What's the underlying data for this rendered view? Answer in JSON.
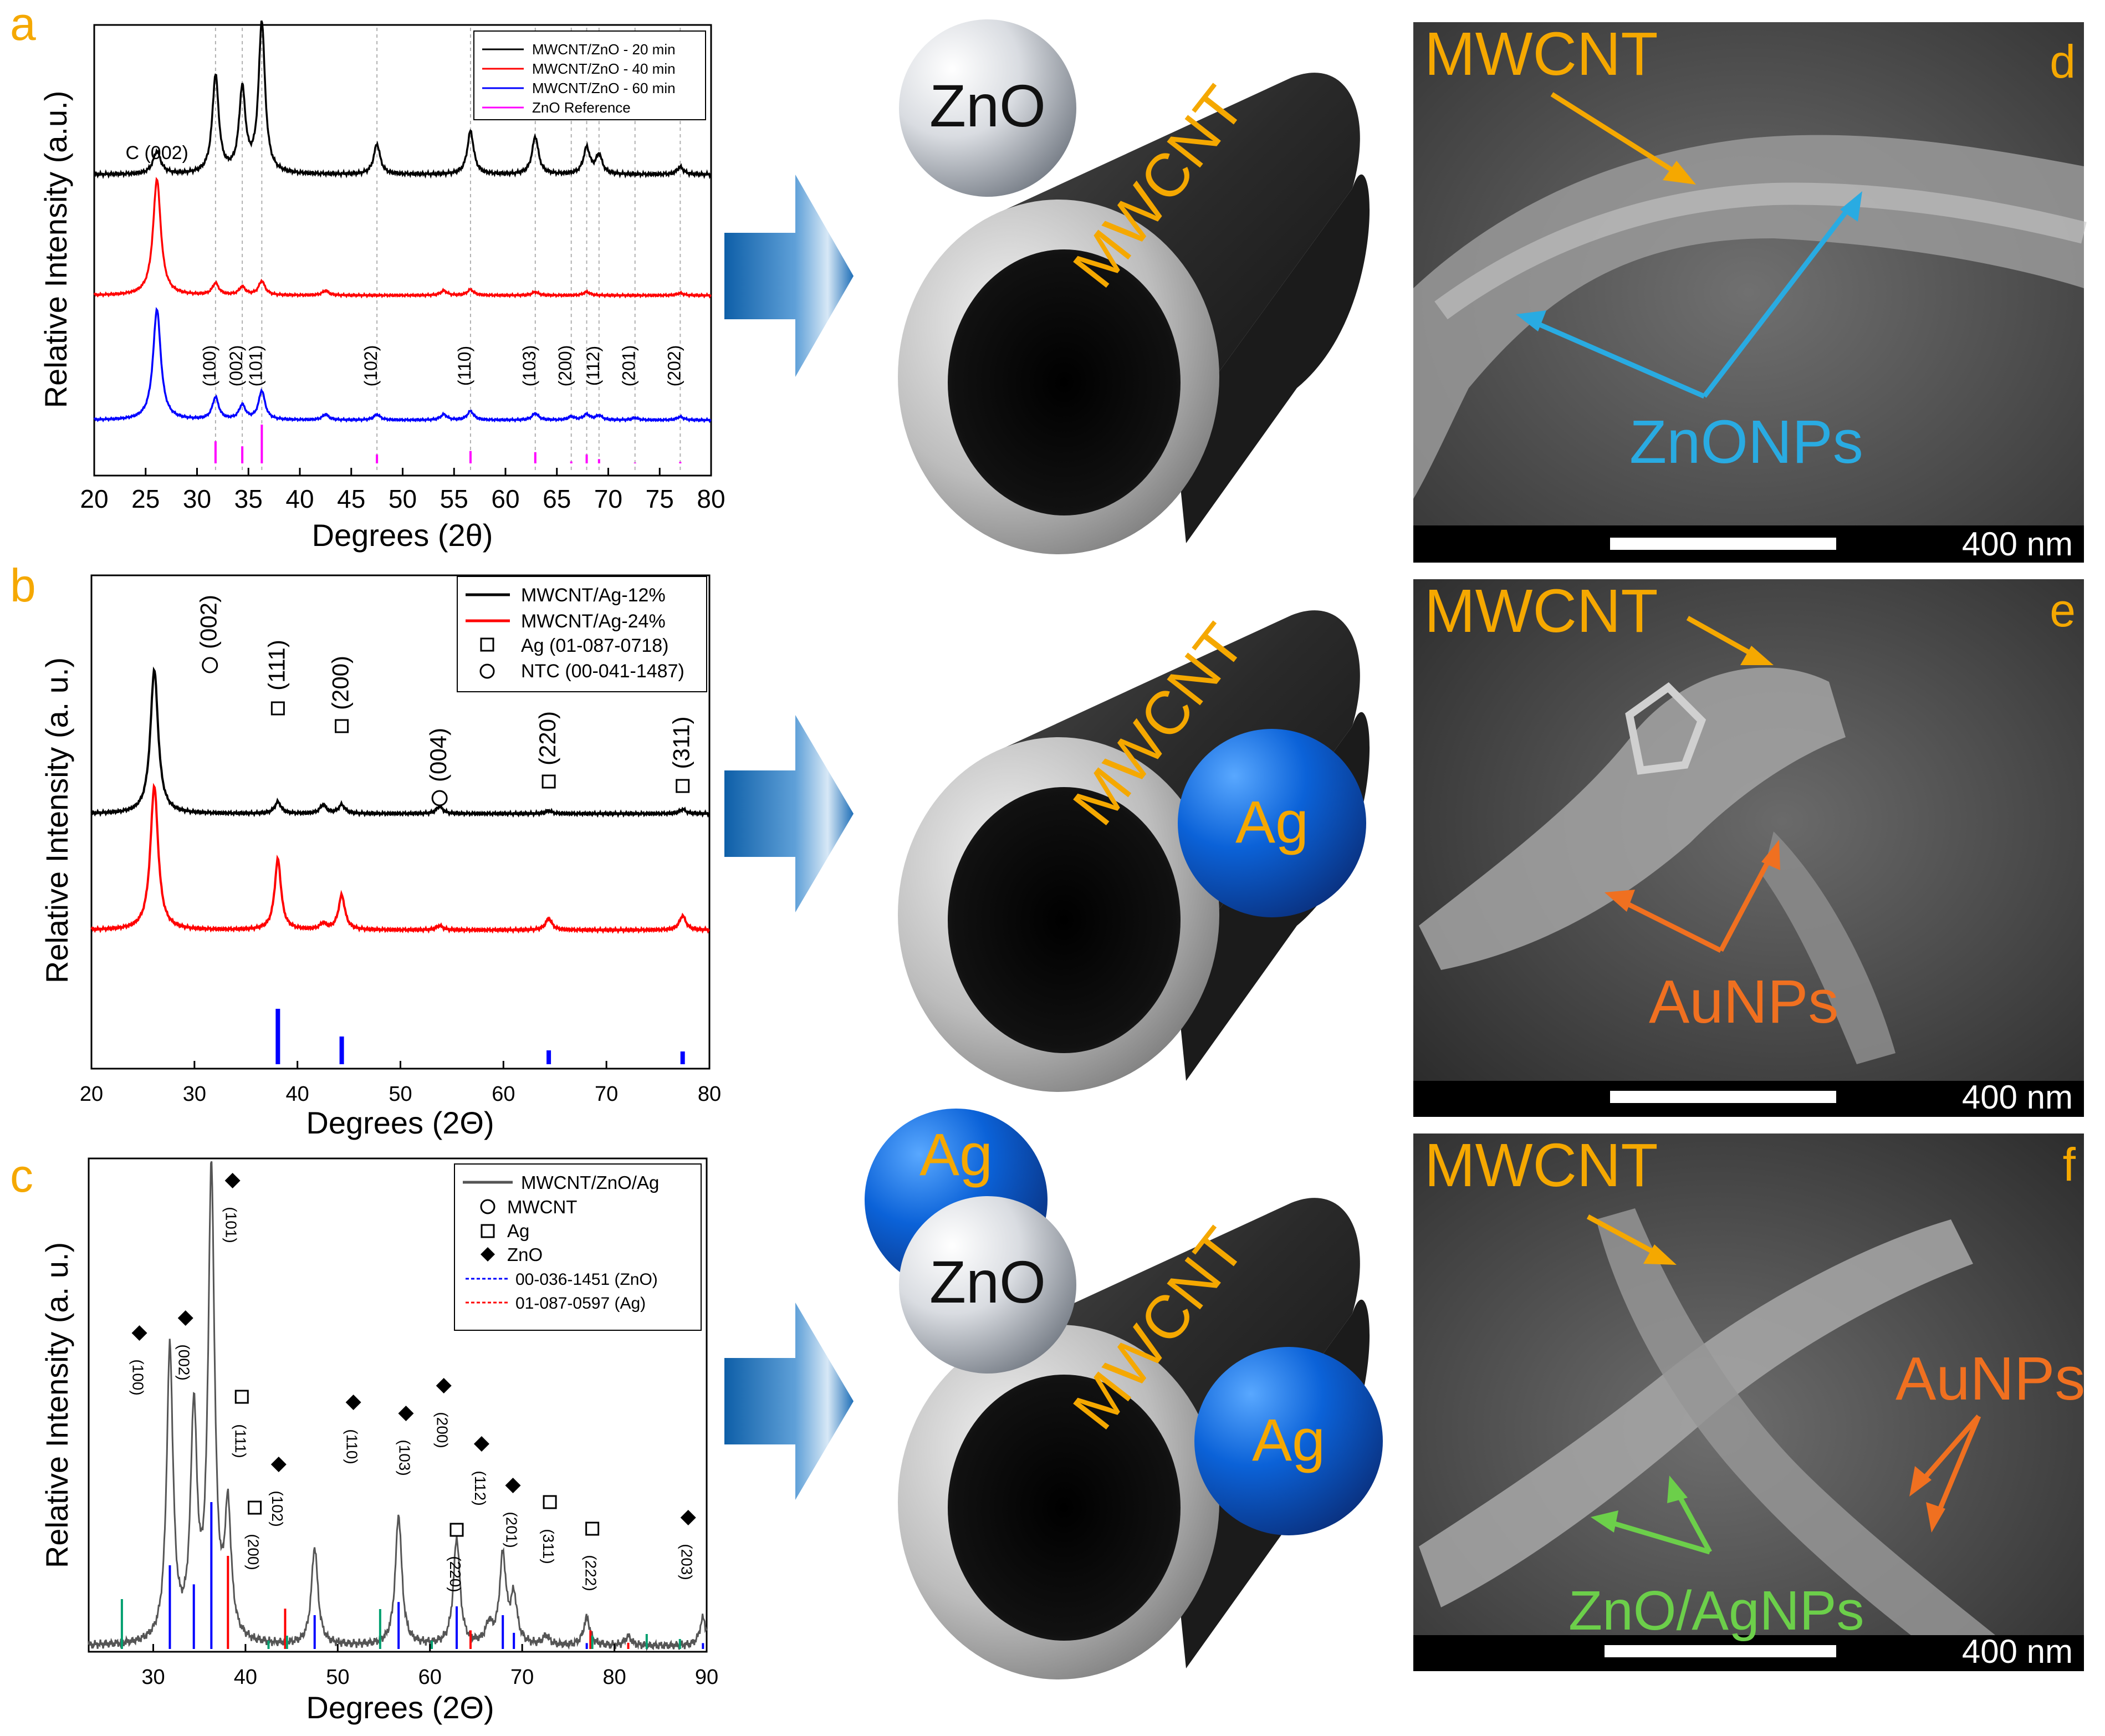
{
  "panels": {
    "a": {
      "letter": "a",
      "ylabel": "Relative Intensity (a.u.)",
      "xlabel": "Degrees (2θ)",
      "legend": [
        "MWCNT/ZnO - 20 min",
        "MWCNT/ZnO - 40 min",
        "MWCNT/ZnO - 60 min",
        "ZnO Reference"
      ],
      "peak_labels": [
        "C (002)",
        "(100)",
        "(002)",
        "(101)",
        "(102)",
        "(110)",
        "(103)",
        "(200)",
        "(112)",
        "(201)",
        "(202)"
      ]
    },
    "b": {
      "letter": "b",
      "ylabel": "Relative Intensity (a. u.)",
      "xlabel": "Degrees (2Θ)",
      "legend": [
        "MWCNT/Ag-12%",
        "MWCNT/Ag-24%",
        "Ag (01-087-0718)",
        "NTC (00-041-1487)"
      ],
      "peak_labels": [
        "(002)",
        "(111)",
        "(200)",
        "(004)",
        "(220)",
        "(311)"
      ]
    },
    "c": {
      "letter": "c",
      "ylabel": "Relative Intensity (a. u.)",
      "xlabel": "Degrees (2Θ)",
      "legend": [
        "MWCNT/ZnO/Ag",
        "MWCNT",
        "Ag",
        "ZnO",
        "00-036-1451 (ZnO)",
        "01-087-0597  (Ag)"
      ],
      "peak_labels": [
        "(100)",
        "(002)",
        "(101)",
        "(111)",
        "(200)",
        "(102)",
        "(110)",
        "(103)",
        "(200)",
        "(220)",
        "(112)",
        "(201)",
        "(311)",
        "(222)",
        "(203)"
      ]
    },
    "d": {
      "letter": "d",
      "labels": [
        "MWCNT",
        "ZnONPs"
      ],
      "scale": "400 nm"
    },
    "e": {
      "letter": "e",
      "labels": [
        "MWCNT",
        "AuNPs"
      ],
      "scale": "400 nm"
    },
    "f": {
      "letter": "f",
      "labels": [
        "MWCNT",
        "AuNPs",
        "ZnO/AgNPs"
      ],
      "scale": "400 nm"
    }
  },
  "schematics": {
    "row1": {
      "tube_label": "MWCNT",
      "spheres": [
        "ZnO"
      ]
    },
    "row2": {
      "tube_label": "MWCNT",
      "spheres": [
        "Ag"
      ]
    },
    "row3": {
      "tube_label": "MWCNT",
      "spheres": [
        "Ag",
        "ZnO",
        "Ag"
      ]
    }
  },
  "chart_data": [
    {
      "type": "line",
      "title": "",
      "xlabel": "Degrees (2θ)",
      "ylabel": "Relative Intensity (a.u.)",
      "xlim": [
        20,
        80
      ],
      "xticks": [
        20,
        25,
        30,
        35,
        40,
        45,
        50,
        55,
        60,
        65,
        70,
        75,
        80
      ],
      "legend_position": "top-right",
      "colors": {
        "MWCNT/ZnO - 20 min": "#000000",
        "MWCNT/ZnO - 40 min": "#ff0000",
        "MWCNT/ZnO - 60 min": "#0000ff",
        "ZnO Reference": "#ff00ff"
      },
      "series": [
        {
          "name": "MWCNT/ZnO - 20 min",
          "peaks": [
            [
              26.1,
              0.12
            ],
            [
              31.8,
              0.52
            ],
            [
              34.4,
              0.44
            ],
            [
              36.3,
              0.8
            ],
            [
              47.5,
              0.16
            ],
            [
              56.6,
              0.23
            ],
            [
              62.9,
              0.2
            ],
            [
              67.9,
              0.14
            ],
            [
              69.1,
              0.1
            ],
            [
              77.0,
              0.04
            ]
          ]
        },
        {
          "name": "MWCNT/ZnO - 40 min",
          "peaks": [
            [
              26.1,
              1.0
            ],
            [
              31.8,
              0.1
            ],
            [
              34.4,
              0.07
            ],
            [
              36.3,
              0.12
            ],
            [
              42.5,
              0.04
            ],
            [
              54.0,
              0.04
            ],
            [
              56.6,
              0.05
            ],
            [
              62.9,
              0.03
            ],
            [
              67.9,
              0.03
            ],
            [
              77.0,
              0.02
            ]
          ]
        },
        {
          "name": "MWCNT/ZnO - 60 min",
          "peaks": [
            [
              26.1,
              1.0
            ],
            [
              31.8,
              0.2
            ],
            [
              34.4,
              0.13
            ],
            [
              36.3,
              0.26
            ],
            [
              42.5,
              0.05
            ],
            [
              47.5,
              0.05
            ],
            [
              54.0,
              0.05
            ],
            [
              56.6,
              0.08
            ],
            [
              62.9,
              0.06
            ],
            [
              66.4,
              0.03
            ],
            [
              67.9,
              0.05
            ],
            [
              69.1,
              0.04
            ],
            [
              72.6,
              0.02
            ],
            [
              77.0,
              0.03
            ]
          ]
        },
        {
          "name": "ZnO Reference",
          "sticks": [
            [
              31.8,
              0.57
            ],
            [
              34.4,
              0.44
            ],
            [
              36.3,
              1.0
            ],
            [
              47.5,
              0.23
            ],
            [
              56.6,
              0.32
            ],
            [
              62.9,
              0.29
            ],
            [
              66.4,
              0.05
            ],
            [
              67.9,
              0.23
            ],
            [
              69.1,
              0.11
            ],
            [
              72.6,
              0.02
            ],
            [
              77.0,
              0.04
            ]
          ]
        }
      ]
    },
    {
      "type": "line",
      "title": "",
      "xlabel": "Degrees (2Θ)",
      "ylabel": "Relative Intensity (a. u.)",
      "xlim": [
        20,
        80
      ],
      "xticks": [
        20,
        30,
        40,
        50,
        60,
        70,
        80
      ],
      "legend_position": "top-right",
      "colors": {
        "MWCNT/Ag-12%": "#000000",
        "MWCNT/Ag-24%": "#ff0000",
        "Ag reference": "#0000ff"
      },
      "series": [
        {
          "name": "MWCNT/Ag-12%",
          "peaks": [
            [
              26.1,
              1.0
            ],
            [
              38.1,
              0.08
            ],
            [
              42.5,
              0.06
            ],
            [
              44.3,
              0.06
            ],
            [
              53.8,
              0.05
            ],
            [
              64.4,
              0.02
            ],
            [
              77.4,
              0.03
            ]
          ]
        },
        {
          "name": "MWCNT/Ag-24%",
          "peaks": [
            [
              26.1,
              1.0
            ],
            [
              38.1,
              0.49
            ],
            [
              42.5,
              0.04
            ],
            [
              44.3,
              0.24
            ],
            [
              53.8,
              0.03
            ],
            [
              64.4,
              0.08
            ],
            [
              77.4,
              0.1
            ]
          ]
        },
        {
          "name": "Ag (01-087-0718)",
          "sticks": [
            [
              38.1,
              1.0
            ],
            [
              44.3,
              0.5
            ],
            [
              64.4,
              0.25
            ],
            [
              77.4,
              0.23
            ]
          ]
        }
      ]
    },
    {
      "type": "line",
      "title": "",
      "xlabel": "Degrees (2Θ)",
      "ylabel": "Relative Intensity (a. u.)",
      "xlim": [
        23,
        90
      ],
      "xticks": [
        30,
        40,
        50,
        60,
        70,
        80,
        90
      ],
      "legend_position": "top-right",
      "colors": {
        "MWCNT/ZnO/Ag": "#555555",
        "00-036-1451 (ZnO)": "#0000ff",
        "01-087-0597  (Ag)": "#ff0000",
        "MWCNT reference": "#00a070"
      },
      "series": [
        {
          "name": "MWCNT/ZnO/Ag",
          "peaks": [
            [
              31.8,
              0.63
            ],
            [
              34.4,
              0.48
            ],
            [
              36.3,
              1.0
            ],
            [
              38.1,
              0.27
            ],
            [
              47.5,
              0.21
            ],
            [
              56.6,
              0.28
            ],
            [
              62.9,
              0.23
            ],
            [
              66.4,
              0.04
            ],
            [
              67.9,
              0.19
            ],
            [
              69.1,
              0.1
            ],
            [
              72.6,
              0.02
            ],
            [
              77.0,
              0.06
            ],
            [
              81.5,
              0.02
            ],
            [
              89.6,
              0.06
            ]
          ]
        },
        {
          "name": "00-036-1451 (ZnO)",
          "sticks": [
            [
              31.8,
              0.57
            ],
            [
              34.4,
              0.44
            ],
            [
              36.3,
              1.0
            ],
            [
              47.5,
              0.23
            ],
            [
              56.6,
              0.32
            ],
            [
              62.9,
              0.29
            ],
            [
              67.9,
              0.23
            ],
            [
              69.1,
              0.11
            ],
            [
              77.0,
              0.04
            ],
            [
              89.6,
              0.04
            ]
          ]
        },
        {
          "name": "01-087-0597  (Ag)",
          "sticks": [
            [
              38.1,
              0.3
            ],
            [
              44.3,
              0.13
            ],
            [
              64.4,
              0.06
            ],
            [
              77.4,
              0.06
            ],
            [
              81.5,
              0.02
            ]
          ]
        },
        {
          "name": "MWCNT reference",
          "sticks": [
            [
              26.6,
              0.3
            ],
            [
              42.5,
              0.05
            ],
            [
              44.5,
              0.08
            ],
            [
              54.6,
              0.24
            ],
            [
              60.2,
              0.05
            ],
            [
              77.6,
              0.08
            ],
            [
              83.5,
              0.09
            ],
            [
              87.1,
              0.06
            ]
          ]
        }
      ]
    }
  ]
}
